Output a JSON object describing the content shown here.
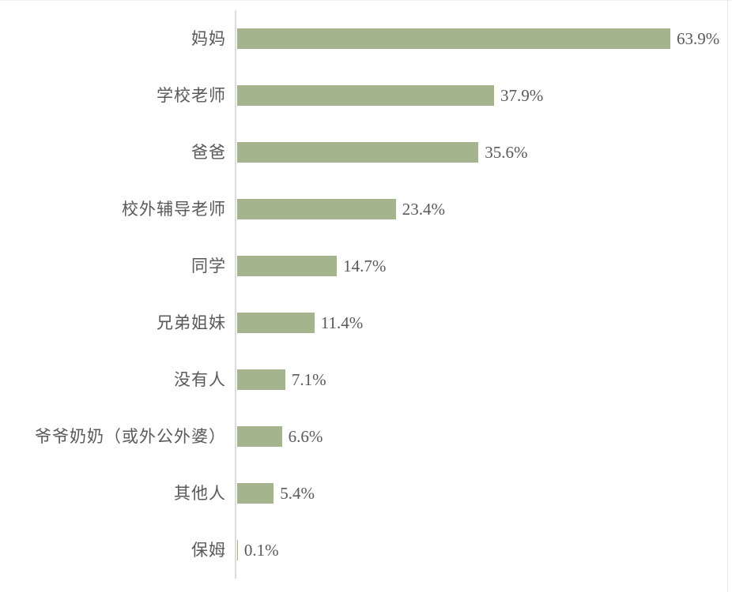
{
  "chart_data": {
    "type": "bar",
    "orientation": "horizontal",
    "title": "",
    "xlabel": "",
    "ylabel": "",
    "categories": [
      "妈妈",
      "学校老师",
      "爸爸",
      "校外辅导老师",
      "同学",
      "兄弟姐妹",
      "没有人",
      "爷爷奶奶（或外公外婆）",
      "其他人",
      "保姆"
    ],
    "values": [
      63.9,
      37.9,
      35.6,
      23.4,
      14.7,
      11.4,
      7.1,
      6.6,
      5.4,
      0.1
    ],
    "value_labels": [
      "63.9%",
      "37.9%",
      "35.6%",
      "23.4%",
      "14.7%",
      "11.4%",
      "7.1%",
      "6.6%",
      "5.4%",
      "0.1%"
    ],
    "xlim": [
      0,
      72.3
    ],
    "grid": false,
    "legend": false,
    "data_labels_position": "outside-end",
    "colors": {
      "bar": "#a4b48c",
      "axis_line": "#dcdcdc",
      "label_text": "#595959",
      "chart_border": "#e7e7e7",
      "background": "#ffffff"
    }
  }
}
